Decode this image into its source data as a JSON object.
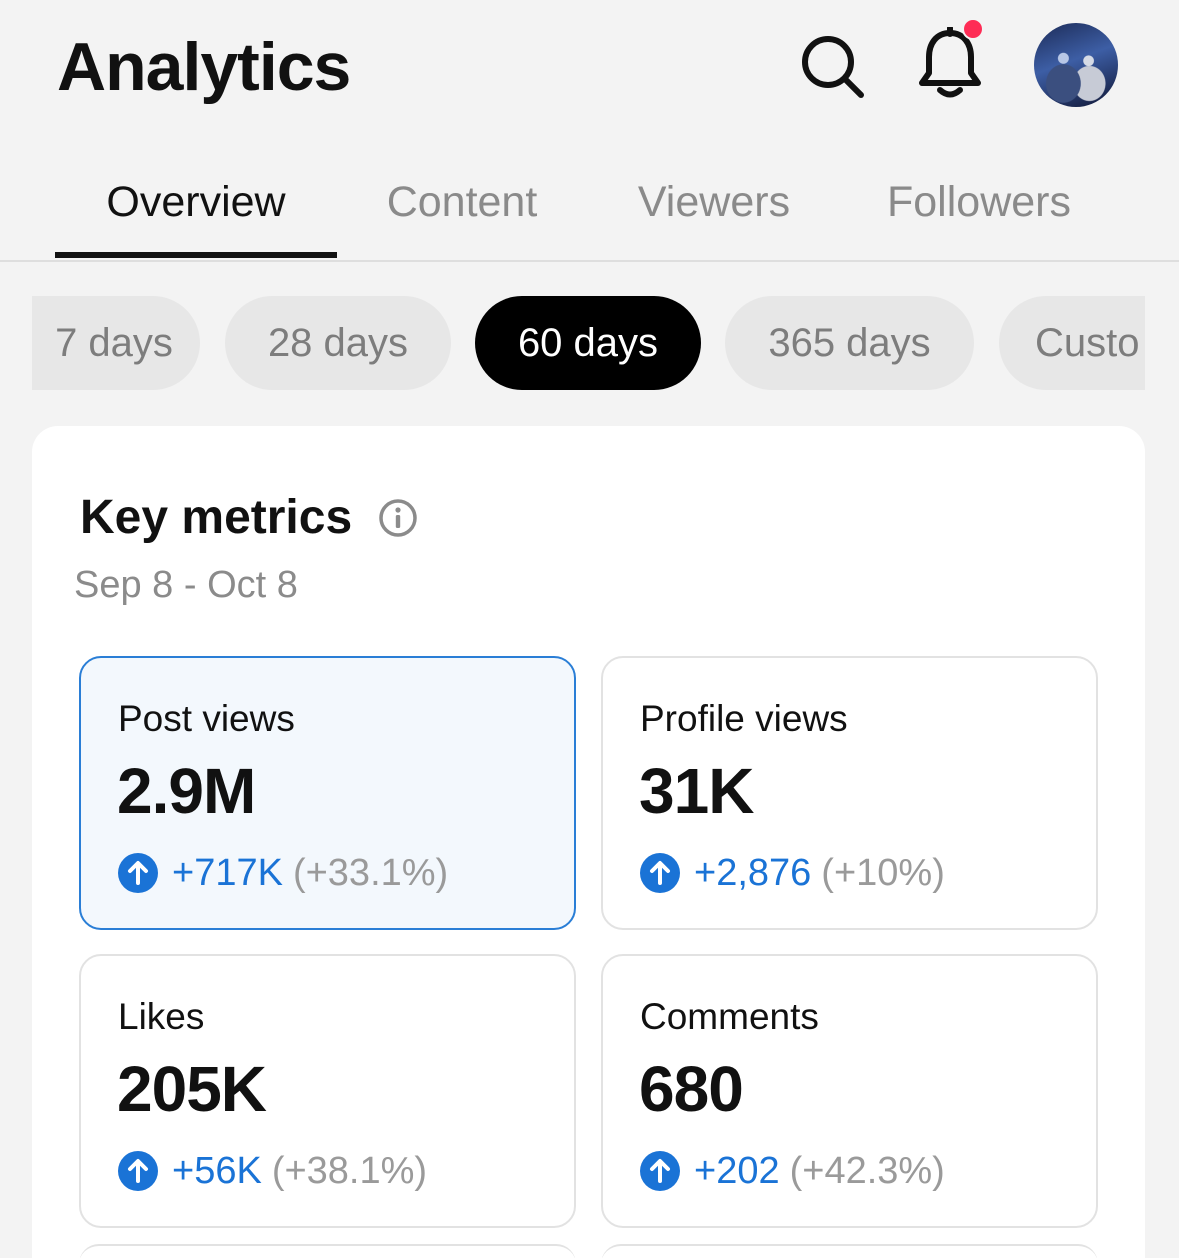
{
  "header": {
    "title": "Analytics",
    "icons": {
      "search": "search-icon",
      "notifications": "bell-icon",
      "profile": "avatar"
    },
    "notification_dot_color": "#fe2c55"
  },
  "tabs": [
    {
      "label": "Overview",
      "active": true
    },
    {
      "label": "Content",
      "active": false
    },
    {
      "label": "Viewers",
      "active": false
    },
    {
      "label": "Followers",
      "active": false
    }
  ],
  "date_chips": [
    {
      "label": "7 days",
      "active": false
    },
    {
      "label": "28 days",
      "active": false
    },
    {
      "label": "60 days",
      "active": true
    },
    {
      "label": "365 days",
      "active": false
    },
    {
      "label": "Custo",
      "active": false
    }
  ],
  "key_metrics": {
    "title": "Key metrics",
    "info_icon": "info-icon",
    "date_range": "Sep 8 - Oct 8",
    "items": [
      {
        "label": "Post views",
        "value": "2.9M",
        "delta": "+717K",
        "delta_pct": "(+33.1%)",
        "selected": true
      },
      {
        "label": "Profile views",
        "value": "31K",
        "delta": "+2,876",
        "delta_pct": "(+10%)",
        "selected": false
      },
      {
        "label": "Likes",
        "value": "205K",
        "delta": "+56K",
        "delta_pct": "(+38.1%)",
        "selected": false
      },
      {
        "label": "Comments",
        "value": "680",
        "delta": "+202",
        "delta_pct": "(+42.3%)",
        "selected": false
      }
    ]
  },
  "colors": {
    "accent_blue": "#1a73d6",
    "selected_border": "#2a7ed6",
    "active_chip": "#000000"
  }
}
